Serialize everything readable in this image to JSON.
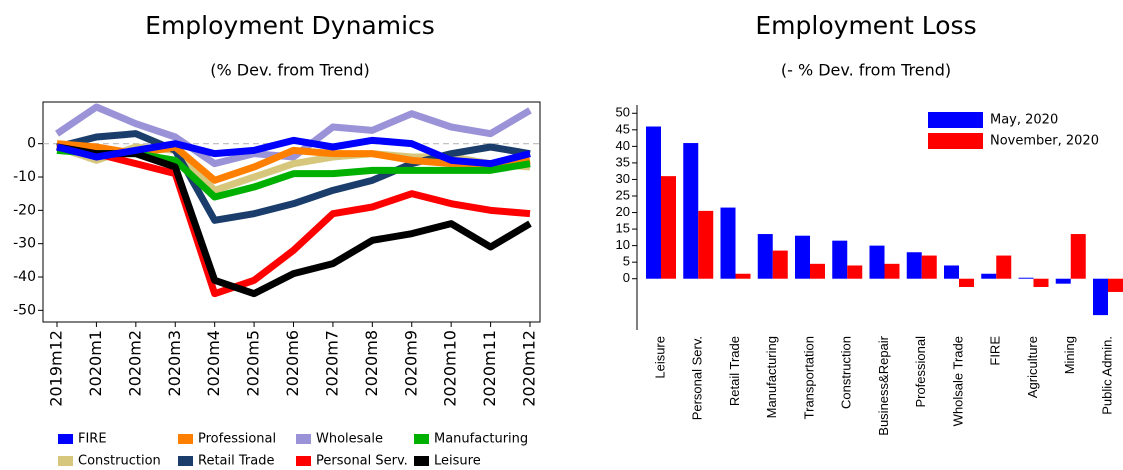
{
  "chart_data": [
    {
      "type": "line",
      "title": "Employment Dynamics",
      "subtitle": "(% Dev. from Trend)",
      "categories": [
        "2019m12",
        "2020m1",
        "2020m2",
        "2020m3",
        "2020m4",
        "2020m5",
        "2020m6",
        "2020m7",
        "2020m8",
        "2020m9",
        "2020m10",
        "2020m11",
        "2020m12"
      ],
      "ylim": [
        -53.5,
        12.5
      ],
      "yticks": [
        0,
        -10,
        -20,
        -30,
        -40,
        -50
      ],
      "reference_line": 0,
      "legend": "bottom",
      "series": [
        {
          "name": "Wholesale",
          "color": "#9b93d8",
          "values": [
            3,
            11,
            6,
            2,
            -6,
            -3,
            -4,
            5,
            4,
            9,
            5,
            3,
            10
          ]
        },
        {
          "name": "Construction",
          "color": "#d6c77c",
          "values": [
            -1,
            -5,
            -1,
            -2,
            -14,
            -10,
            -6,
            -4,
            -3,
            -4,
            -4,
            -6,
            -7
          ]
        },
        {
          "name": "Retail Trade",
          "color": "#1b3d6b",
          "values": [
            -1,
            2,
            3,
            -2,
            -23,
            -21,
            -18,
            -14,
            -11,
            -6,
            -3,
            -1,
            -3
          ]
        },
        {
          "name": "Professional",
          "color": "#ff8000",
          "values": [
            0,
            -1,
            -3,
            -1,
            -11,
            -7,
            -2,
            -3,
            -3,
            -5,
            -6,
            -7,
            -5
          ]
        },
        {
          "name": "Manufacturing",
          "color": "#00b000",
          "values": [
            -2,
            -3,
            -3,
            -5,
            -16,
            -13,
            -9,
            -9,
            -8,
            -8,
            -8,
            -8,
            -6
          ]
        },
        {
          "name": "Personal Serv.",
          "color": "#ff0000",
          "values": [
            -1,
            -3,
            -6,
            -9,
            -45,
            -41,
            -32,
            -21,
            -19,
            -15,
            -18,
            -20,
            -21
          ]
        },
        {
          "name": "Leisure",
          "color": "#000000",
          "values": [
            -1,
            -3,
            -3,
            -7,
            -41,
            -45,
            -39,
            -36,
            -29,
            -27,
            -24,
            -31,
            -24
          ]
        },
        {
          "name": "FIRE",
          "color": "#0000ff",
          "values": [
            -1,
            -4,
            -2,
            0,
            -3,
            -2,
            1,
            -1,
            1,
            0,
            -5,
            -6,
            -3
          ]
        }
      ]
    },
    {
      "type": "bar",
      "title": "Employment Loss",
      "subtitle": "(- % Dev. from Trend)",
      "categories": [
        "Leisure",
        "Personal Serv.",
        "Retail Trade",
        "Manufacturing",
        "Transportation",
        "Construction",
        "Business&Repair",
        "Professional",
        "Wholsale Trade",
        "FIRE",
        "Agriculture",
        "Mining",
        "Public Admin."
      ],
      "ylim": [
        -15.5,
        52.5
      ],
      "yticks": [
        0,
        5,
        10,
        15,
        20,
        25,
        30,
        35,
        40,
        45,
        50
      ],
      "legend": "top-right",
      "series": [
        {
          "name": "May, 2020",
          "color": "#0000ff",
          "values": [
            46,
            41,
            21.5,
            13.5,
            13,
            11.5,
            10,
            8,
            4,
            1.5,
            0.3,
            -1.5,
            -11
          ]
        },
        {
          "name": "November, 2020",
          "color": "#ff0000",
          "values": [
            31,
            20.5,
            1.5,
            8.5,
            4.5,
            4,
            4.5,
            7,
            -2.5,
            7,
            -2.5,
            13.5,
            -4
          ]
        }
      ]
    }
  ]
}
